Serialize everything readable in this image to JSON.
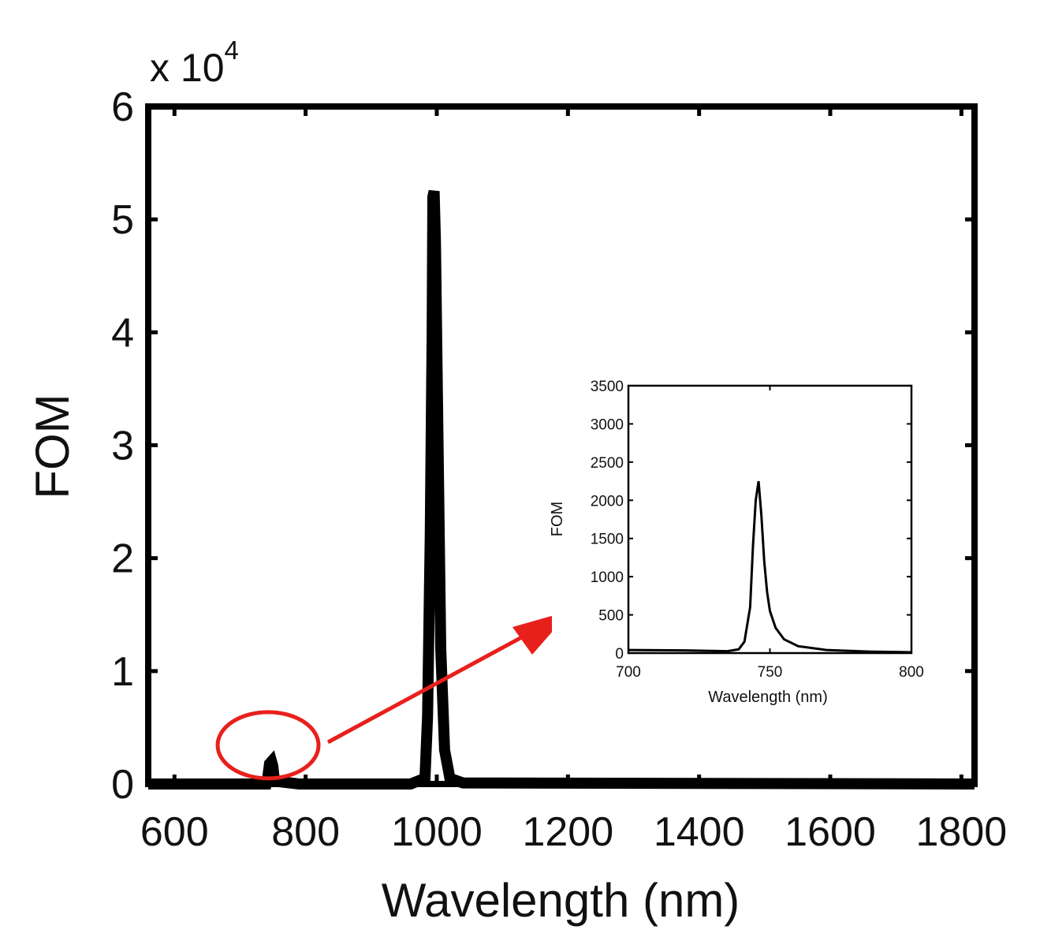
{
  "chart_data": [
    {
      "id": "main",
      "type": "line",
      "title": "",
      "xlabel": "Wavelength (nm)",
      "ylabel": "FOM",
      "y_scale_label_prefix": "x 10",
      "y_scale_label_exponent": "4",
      "xlim": [
        560,
        1820
      ],
      "ylim": [
        0,
        6
      ],
      "xticks": [
        600,
        800,
        1000,
        1200,
        1400,
        1600,
        1800
      ],
      "xtick_labels": [
        "600",
        "800",
        "1000",
        "1200",
        "1400",
        "1600",
        "1800"
      ],
      "yticks": [
        0,
        1,
        2,
        3,
        4,
        5,
        6
      ],
      "ytick_labels": [
        "0",
        "1",
        "2",
        "3",
        "4",
        "5",
        "6"
      ],
      "grid": false,
      "series": [
        {
          "name": "FOM",
          "x": [
            560,
            700,
            740,
            742,
            745,
            748,
            750,
            752,
            760,
            790,
            960,
            982,
            986,
            990,
            993,
            994,
            996,
            998,
            1002,
            1006,
            1012,
            1020,
            1040,
            1820
          ],
          "y": [
            0.0,
            0.0,
            0.0,
            0.05,
            0.18,
            0.2,
            0.16,
            0.05,
            0.02,
            0.0,
            0.0,
            0.05,
            0.6,
            2.2,
            4.0,
            5.2,
            5.25,
            4.8,
            3.0,
            1.2,
            0.3,
            0.05,
            0.01,
            0.0
          ]
        }
      ],
      "highlight": {
        "shape": "ellipse",
        "color": "#e8201c",
        "center_x": 750,
        "center_y": 0.12
      }
    },
    {
      "id": "inset",
      "type": "line",
      "title": "",
      "xlabel": "Wavelength (nm)",
      "ylabel": "FOM",
      "xlim": [
        700,
        800
      ],
      "ylim": [
        0,
        3500
      ],
      "xticks": [
        700,
        750,
        800
      ],
      "xtick_labels": [
        "700",
        "750",
        "800"
      ],
      "yticks": [
        0,
        500,
        1000,
        1500,
        2000,
        2500,
        3000,
        3500
      ],
      "ytick_labels": [
        "0",
        "500",
        "1000",
        "1500",
        "2000",
        "2500",
        "3000",
        "3500"
      ],
      "grid": false,
      "series": [
        {
          "name": "FOM",
          "x": [
            700,
            720,
            735,
            739,
            741,
            743,
            744,
            745,
            746,
            747,
            748,
            749,
            750,
            752,
            755,
            760,
            770,
            785,
            800
          ],
          "y": [
            40,
            35,
            25,
            50,
            150,
            600,
            1400,
            2000,
            2250,
            1800,
            1200,
            800,
            550,
            330,
            180,
            90,
            40,
            20,
            10
          ]
        }
      ]
    }
  ],
  "annotation": {
    "type": "arrow",
    "color": "#e8201c",
    "from": "highlight ellipse",
    "to": "inset"
  }
}
